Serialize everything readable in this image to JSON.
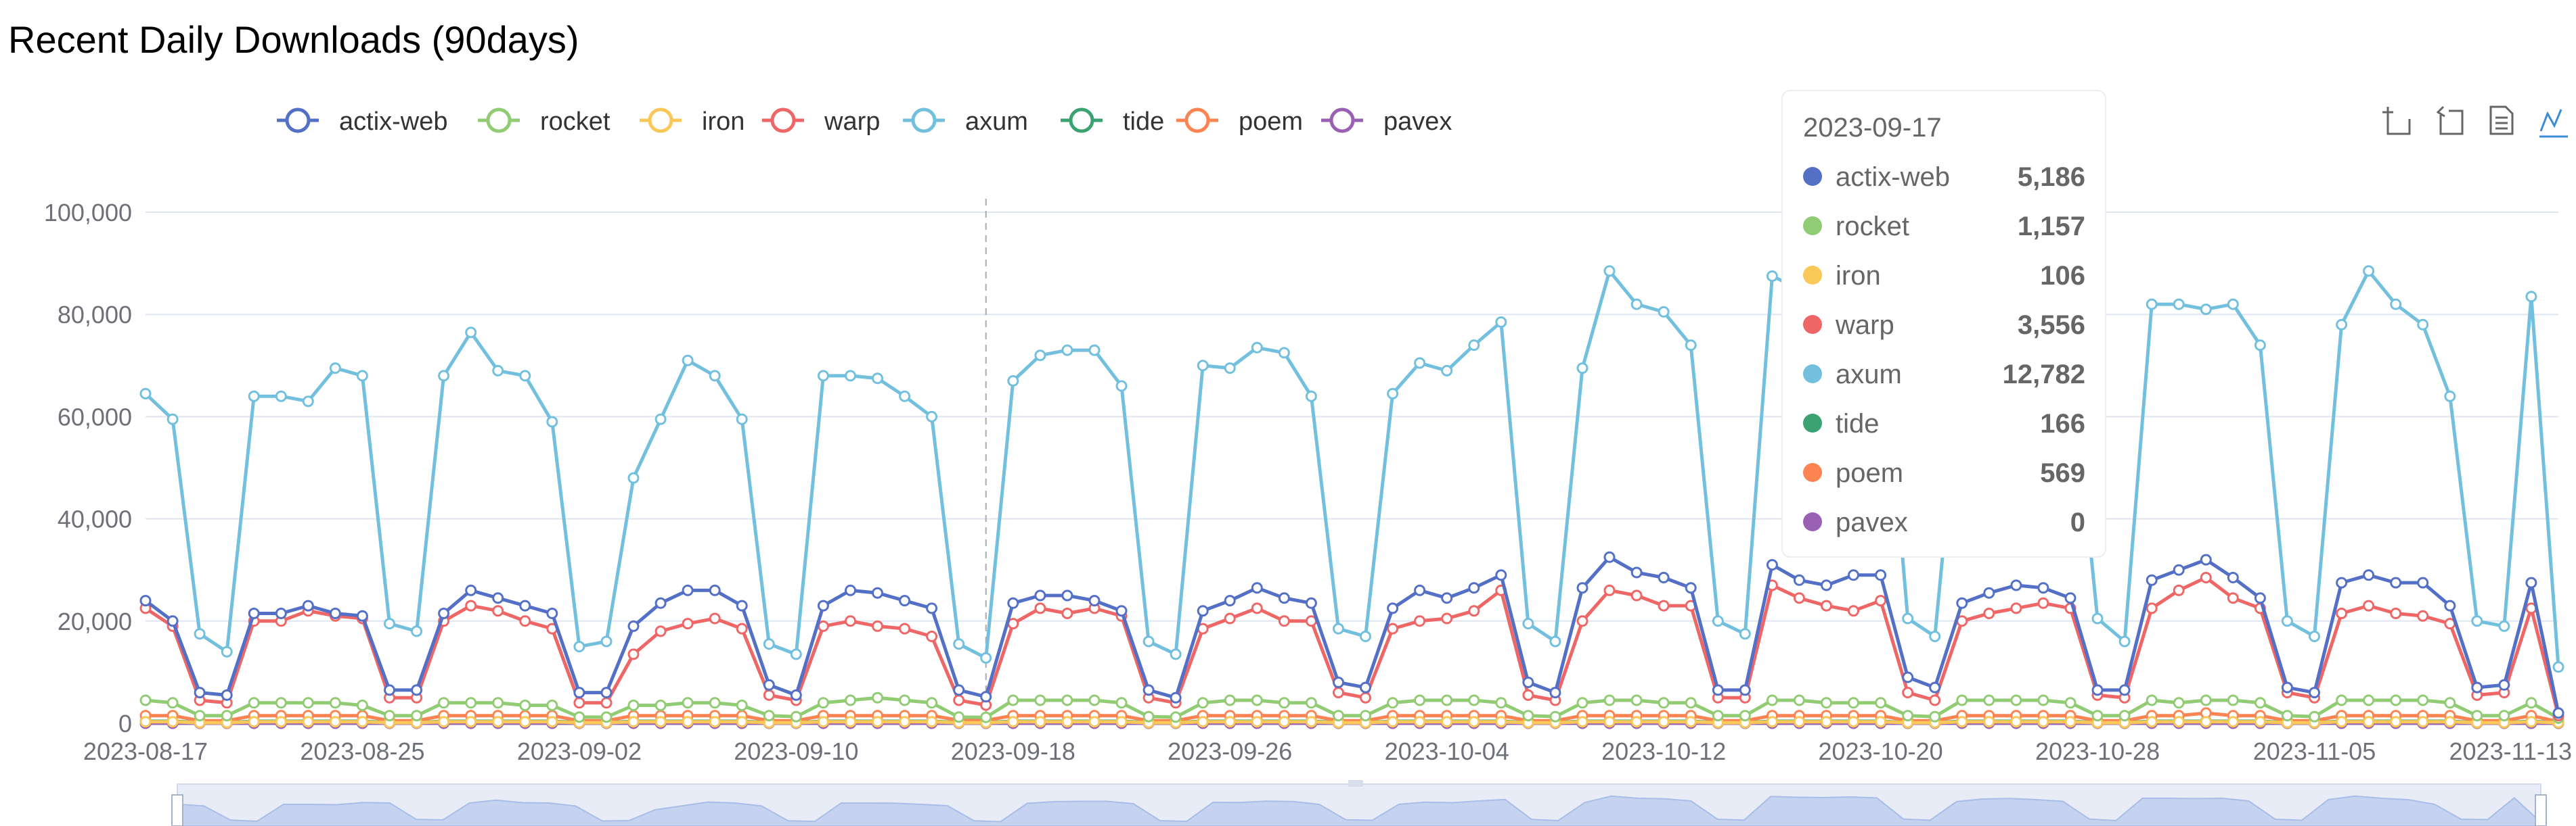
{
  "page": {
    "title": "Recent Daily Downloads (90days)"
  },
  "legend": {
    "items": [
      {
        "name": "actix-web",
        "color": "#5470c6"
      },
      {
        "name": "rocket",
        "color": "#91cc75"
      },
      {
        "name": "iron",
        "color": "#fac858"
      },
      {
        "name": "warp",
        "color": "#ee6666"
      },
      {
        "name": "axum",
        "color": "#73c0de"
      },
      {
        "name": "tide",
        "color": "#3ba272"
      },
      {
        "name": "poem",
        "color": "#fc8452"
      },
      {
        "name": "pavex",
        "color": "#9a60b4"
      }
    ]
  },
  "toolbox": {
    "icons": [
      "zoom-icon",
      "zoom-reset-icon",
      "data-view-icon",
      "line-chart-icon"
    ]
  },
  "tooltip": {
    "date": "2023-09-17",
    "rows": [
      {
        "name": "actix-web",
        "value": "5,186",
        "color": "#5470c6"
      },
      {
        "name": "rocket",
        "value": "1,157",
        "color": "#91cc75"
      },
      {
        "name": "iron",
        "value": "106",
        "color": "#fac858"
      },
      {
        "name": "warp",
        "value": "3,556",
        "color": "#ee6666"
      },
      {
        "name": "axum",
        "value": "12,782",
        "color": "#73c0de"
      },
      {
        "name": "tide",
        "value": "166",
        "color": "#3ba272"
      },
      {
        "name": "poem",
        "value": "569",
        "color": "#fc8452"
      },
      {
        "name": "pavex",
        "value": "0",
        "color": "#9a60b4"
      }
    ]
  },
  "chart_data": {
    "type": "line",
    "title": "Recent Daily Downloads (90days)",
    "x_start": "2023-08-17",
    "x_end": "2023-11-13",
    "x_tick_labels": [
      "2023-08-17",
      "2023-08-25",
      "2023-09-02",
      "2023-09-10",
      "2023-09-18",
      "2023-09-26",
      "2023-10-04",
      "2023-10-12",
      "2023-10-20",
      "2023-10-28",
      "2023-11-05",
      "2023-11-13"
    ],
    "y_tick_labels": [
      "0",
      "20,000",
      "40,000",
      "60,000",
      "80,000",
      "100,000"
    ],
    "ylim": [
      0,
      100000
    ],
    "grid": true,
    "legend_position": "top",
    "hover_date": "2023-09-17",
    "series": [
      {
        "name": "actix-web",
        "color": "#5470c6",
        "values": [
          24000,
          20000,
          6000,
          5500,
          21500,
          21500,
          23000,
          21500,
          21000,
          6500,
          6500,
          21500,
          26000,
          24500,
          23000,
          21500,
          6000,
          6000,
          19000,
          23500,
          26000,
          26000,
          23000,
          7500,
          5500,
          23000,
          26000,
          25500,
          24000,
          22500,
          6500,
          5186,
          23500,
          25000,
          25000,
          24000,
          22000,
          6500,
          5000,
          22000,
          24000,
          26500,
          24500,
          23500,
          8000,
          7000,
          22500,
          26000,
          24500,
          26500,
          29000,
          8000,
          6000,
          26500,
          32500,
          29500,
          28500,
          26500,
          6500,
          6500,
          31000,
          28000,
          27000,
          29000,
          29000,
          9000,
          7000,
          23500,
          25500,
          27000,
          26500,
          24500,
          6500,
          6500,
          28000,
          30000,
          32000,
          28500,
          24500,
          7000,
          6000,
          27500,
          29000,
          27500,
          27500,
          23000,
          7000,
          7500,
          27500,
          2000
        ]
      },
      {
        "name": "rocket",
        "color": "#91cc75",
        "values": [
          4500,
          4000,
          1500,
          1500,
          4000,
          4000,
          4000,
          4000,
          3500,
          1500,
          1500,
          4000,
          4000,
          4000,
          3500,
          3500,
          1200,
          1200,
          3500,
          3500,
          4000,
          4000,
          3500,
          1500,
          1300,
          4000,
          4500,
          5000,
          4500,
          4000,
          1200,
          1157,
          4500,
          4500,
          4500,
          4500,
          4000,
          1300,
          1200,
          4000,
          4500,
          4500,
          4000,
          4000,
          1500,
          1500,
          4000,
          4500,
          4500,
          4500,
          4000,
          1500,
          1300,
          4000,
          4500,
          4500,
          4000,
          4000,
          1500,
          1500,
          4500,
          4500,
          4000,
          4000,
          4000,
          1500,
          1300,
          4500,
          4500,
          4500,
          4500,
          4000,
          1500,
          1500,
          4500,
          4000,
          4500,
          4500,
          4000,
          1500,
          1300,
          4500,
          4500,
          4500,
          4500,
          4000,
          1500,
          1500,
          4000,
          1000
        ]
      },
      {
        "name": "iron",
        "color": "#fac858",
        "values": [
          300,
          300,
          100,
          100,
          300,
          300,
          300,
          300,
          300,
          100,
          100,
          300,
          300,
          300,
          300,
          300,
          100,
          100,
          300,
          300,
          300,
          300,
          300,
          100,
          100,
          300,
          300,
          300,
          300,
          300,
          100,
          106,
          300,
          300,
          300,
          300,
          300,
          100,
          100,
          300,
          300,
          300,
          300,
          300,
          100,
          100,
          300,
          300,
          300,
          300,
          300,
          100,
          100,
          300,
          300,
          300,
          300,
          300,
          100,
          100,
          300,
          300,
          300,
          300,
          300,
          100,
          100,
          300,
          300,
          300,
          300,
          300,
          100,
          100,
          300,
          300,
          300,
          300,
          300,
          100,
          100,
          300,
          300,
          300,
          300,
          300,
          100,
          100,
          300,
          100
        ]
      },
      {
        "name": "warp",
        "color": "#ee6666",
        "values": [
          22500,
          19000,
          4500,
          4000,
          20000,
          20000,
          22000,
          21000,
          20500,
          5000,
          5000,
          20000,
          23000,
          22000,
          20000,
          18500,
          4000,
          4000,
          13500,
          18000,
          19500,
          20500,
          18500,
          5500,
          4500,
          19000,
          20000,
          19000,
          18500,
          17000,
          4500,
          3556,
          19500,
          22500,
          21500,
          22500,
          21000,
          5000,
          4000,
          18500,
          20500,
          22500,
          20000,
          20000,
          6000,
          5000,
          18500,
          20000,
          20500,
          22000,
          26000,
          5500,
          4500,
          20000,
          26000,
          25000,
          23000,
          23000,
          5000,
          5000,
          27000,
          24500,
          23000,
          22000,
          24000,
          6000,
          4500,
          20000,
          21500,
          22500,
          23500,
          22500,
          5500,
          5000,
          22500,
          26000,
          28500,
          24500,
          22500,
          6000,
          5000,
          21500,
          23000,
          21500,
          21000,
          19500,
          5500,
          6000,
          22500,
          1500
        ]
      },
      {
        "name": "axum",
        "color": "#73c0de",
        "values": [
          64500,
          59500,
          17500,
          14000,
          64000,
          64000,
          63000,
          69500,
          68000,
          19500,
          18000,
          68000,
          76500,
          69000,
          68000,
          59000,
          15000,
          16000,
          48000,
          59500,
          71000,
          68000,
          59500,
          15500,
          13500,
          68000,
          68000,
          67500,
          64000,
          60000,
          15500,
          12782,
          67000,
          72000,
          73000,
          73000,
          66000,
          16000,
          13500,
          70000,
          69500,
          73500,
          72500,
          64000,
          18500,
          17000,
          64500,
          70500,
          69000,
          74000,
          78500,
          19500,
          16000,
          69500,
          88500,
          82000,
          80500,
          74000,
          20000,
          17500,
          87500,
          85000,
          84000,
          86000,
          83000,
          20500,
          17000,
          72000,
          80000,
          81500,
          78000,
          73000,
          20500,
          16000,
          82000,
          82000,
          81000,
          82000,
          74000,
          20000,
          17000,
          78000,
          88500,
          82000,
          78000,
          64000,
          20000,
          19000,
          83500,
          11000
        ]
      },
      {
        "name": "tide",
        "color": "#3ba272",
        "values": [
          400,
          400,
          150,
          150,
          400,
          400,
          400,
          400,
          400,
          150,
          150,
          400,
          400,
          400,
          400,
          400,
          150,
          150,
          400,
          400,
          400,
          400,
          400,
          150,
          150,
          400,
          400,
          400,
          400,
          400,
          150,
          166,
          400,
          400,
          400,
          400,
          400,
          150,
          150,
          400,
          400,
          400,
          400,
          400,
          150,
          150,
          400,
          400,
          400,
          400,
          400,
          150,
          150,
          400,
          400,
          400,
          400,
          400,
          150,
          150,
          400,
          400,
          400,
          400,
          400,
          150,
          150,
          400,
          400,
          400,
          400,
          400,
          150,
          150,
          400,
          400,
          400,
          400,
          400,
          150,
          150,
          400,
          400,
          400,
          400,
          400,
          150,
          150,
          400,
          150
        ]
      },
      {
        "name": "poem",
        "color": "#fc8452",
        "values": [
          1500,
          1500,
          500,
          500,
          1500,
          1500,
          1500,
          1500,
          1500,
          500,
          500,
          1500,
          1500,
          1500,
          1500,
          1500,
          500,
          500,
          1500,
          1500,
          1500,
          1500,
          1500,
          500,
          500,
          1500,
          1500,
          1500,
          1500,
          1500,
          600,
          569,
          1500,
          1500,
          1500,
          1500,
          1500,
          500,
          500,
          1500,
          1500,
          1500,
          1500,
          1500,
          500,
          500,
          1500,
          1500,
          1500,
          1500,
          1500,
          500,
          500,
          1500,
          1500,
          1500,
          1500,
          1500,
          500,
          500,
          1500,
          1500,
          1500,
          1500,
          1500,
          500,
          500,
          1500,
          1500,
          1500,
          1500,
          1500,
          500,
          500,
          1500,
          1500,
          2000,
          1500,
          1500,
          500,
          500,
          1500,
          1500,
          1500,
          1500,
          1500,
          500,
          500,
          1500,
          300
        ]
      },
      {
        "name": "pavex",
        "color": "#9a60b4",
        "values": [
          0,
          0,
          0,
          0,
          0,
          0,
          0,
          0,
          0,
          0,
          0,
          0,
          0,
          0,
          0,
          0,
          0,
          0,
          0,
          0,
          0,
          0,
          0,
          0,
          0,
          0,
          0,
          0,
          0,
          0,
          0,
          0,
          0,
          0,
          0,
          0,
          0,
          0,
          0,
          0,
          0,
          0,
          0,
          0,
          0,
          0,
          0,
          0,
          0,
          0,
          0,
          0,
          0,
          0,
          0,
          0,
          0,
          0,
          0,
          0,
          0,
          0,
          0,
          0,
          0,
          0,
          0,
          0,
          0,
          0,
          0,
          0,
          0,
          0,
          0,
          0,
          0,
          0,
          0,
          0,
          0,
          0,
          0,
          0,
          0,
          0,
          0,
          0,
          0,
          0
        ]
      }
    ]
  }
}
